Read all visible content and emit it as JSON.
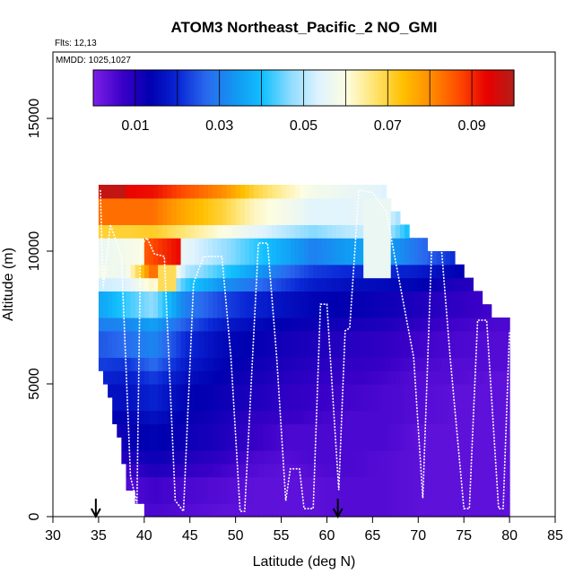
{
  "chart_data": {
    "type": "heatmap",
    "title": "ATOM3 Northeast_Pacific_2 NO_GMI",
    "flights_label": "Flts: 12,13",
    "mmdd_label": "MMDD: 1025,1027",
    "xlabel": "Latitude (deg N)",
    "ylabel": "Altitude (m)",
    "xlim": [
      30,
      85
    ],
    "ylim": [
      0,
      17500
    ],
    "x_ticks": [
      "30",
      "35",
      "40",
      "45",
      "50",
      "55",
      "60",
      "65",
      "70",
      "75",
      "80",
      "85"
    ],
    "y_ticks": [
      "0",
      "5000",
      "10000",
      "15000"
    ],
    "colorbar": {
      "ticks": [
        "0.01",
        "0.03",
        "0.05",
        "0.07",
        "0.09"
      ],
      "range": [
        0,
        0.1
      ],
      "colors": [
        "#7a1ee6",
        "#3a00c8",
        "#0000b0",
        "#0a28d6",
        "#2a6aee",
        "#1296f2",
        "#12c0ff",
        "#8fdcff",
        "#dff3ff",
        "#fdfde0",
        "#ffe36e",
        "#ffbf00",
        "#ff8c00",
        "#ff4a00",
        "#e80000",
        "#b0201a"
      ]
    },
    "markers": [
      34.7,
      61.2
    ],
    "flight_track": [
      [
        35.2,
        12300
      ],
      [
        35.5,
        8600
      ],
      [
        36.3,
        11000
      ],
      [
        37.5,
        9800
      ],
      [
        38.5,
        1500
      ],
      [
        39.2,
        500
      ],
      [
        39.6,
        10200
      ],
      [
        40.3,
        10500
      ],
      [
        41.1,
        9900
      ],
      [
        42.2,
        9800
      ],
      [
        43.4,
        600
      ],
      [
        44.3,
        200
      ],
      [
        45.4,
        8800
      ],
      [
        46.5,
        9800
      ],
      [
        48.5,
        9800
      ],
      [
        49.5,
        6000
      ],
      [
        50.5,
        200
      ],
      [
        51.0,
        200
      ],
      [
        52.5,
        10300
      ],
      [
        53.5,
        10300
      ],
      [
        54.5,
        6000
      ],
      [
        55.5,
        600
      ],
      [
        56.0,
        1800
      ],
      [
        57.0,
        1800
      ],
      [
        57.5,
        300
      ],
      [
        58.5,
        300
      ],
      [
        59.3,
        8000
      ],
      [
        60.0,
        8000
      ],
      [
        61.3,
        1000
      ],
      [
        62.0,
        7000
      ],
      [
        62.5,
        7100
      ],
      [
        63.5,
        12300
      ],
      [
        65.0,
        12200
      ],
      [
        66.5,
        11500
      ],
      [
        69.5,
        6000
      ],
      [
        70.5,
        700
      ],
      [
        71.5,
        10300
      ],
      [
        72.5,
        10300
      ],
      [
        73.5,
        6000
      ],
      [
        75.0,
        300
      ],
      [
        75.6,
        300
      ],
      [
        76.5,
        7400
      ],
      [
        77.5,
        7400
      ],
      [
        78.8,
        300
      ],
      [
        79.3,
        300
      ],
      [
        80.0,
        7000
      ]
    ],
    "profile_mids": [
      35.5,
      38.0,
      41.0,
      44.5,
      48.5,
      52.0,
      55.5,
      58.5,
      62.0,
      66.0,
      70.0,
      74.0,
      78.0
    ],
    "profile_values": [
      [
        0.004,
        0.004,
        0.005,
        0.007,
        0.01,
        0.013,
        0.016,
        0.019,
        0.022,
        0.025,
        0.03,
        0.036,
        0.052,
        0.058,
        0.056,
        0.07,
        0.083,
        0.095,
        0.098
      ],
      [
        0.004,
        0.004,
        0.006,
        0.01,
        0.012,
        0.014,
        0.016,
        0.018,
        0.021,
        0.027,
        0.031,
        0.042,
        0.053,
        0.056,
        0.058,
        0.07,
        0.083,
        0.093,
        0.096
      ],
      [
        0.005,
        0.006,
        0.01,
        0.012,
        0.014,
        0.016,
        0.019,
        0.022,
        0.027,
        0.031,
        0.035,
        0.047,
        0.062,
        0.085,
        0.06,
        0.071,
        0.083,
        0.092,
        0.096
      ],
      [
        0.004,
        0.005,
        0.008,
        0.01,
        0.012,
        0.013,
        0.014,
        0.016,
        0.018,
        0.02,
        0.025,
        0.03,
        0.042,
        0.05,
        0.055,
        0.066,
        0.076,
        0.086,
        0.09
      ],
      [
        0.003,
        0.004,
        0.006,
        0.008,
        0.01,
        0.011,
        0.012,
        0.013,
        0.014,
        0.015,
        0.018,
        0.023,
        0.033,
        0.042,
        0.048,
        0.06,
        0.07,
        0.08,
        0.084
      ],
      [
        0.003,
        0.003,
        0.004,
        0.005,
        0.007,
        0.008,
        0.01,
        0.011,
        0.012,
        0.013,
        0.015,
        0.019,
        0.028,
        0.035,
        0.042,
        0.055,
        0.062,
        0.07,
        0.074
      ],
      [
        0.003,
        0.003,
        0.003,
        0.004,
        0.005,
        0.007,
        0.008,
        0.009,
        0.01,
        0.011,
        0.013,
        0.016,
        0.022,
        0.027,
        0.036,
        0.05,
        0.058,
        0.063,
        0.065
      ],
      [
        0.003,
        0.003,
        0.004,
        0.005,
        0.005,
        0.006,
        0.007,
        0.008,
        0.009,
        0.01,
        0.012,
        0.014,
        0.018,
        0.022,
        0.03,
        0.046,
        0.054,
        0.058,
        0.06
      ],
      [
        0.004,
        0.004,
        0.005,
        0.005,
        0.005,
        0.005,
        0.006,
        0.007,
        0.008,
        0.009,
        0.011,
        0.013,
        0.016,
        0.02,
        0.034,
        0.05,
        0.054,
        0.056,
        0.056
      ],
      [
        0.004,
        0.004,
        0.004,
        0.004,
        0.005,
        0.005,
        0.005,
        0.006,
        0.007,
        0.008,
        0.01,
        0.012,
        0.015,
        0.02,
        0.036,
        0.052,
        0.056,
        0.054,
        0.052
      ],
      [
        0.003,
        0.003,
        0.003,
        0.003,
        0.003,
        0.004,
        0.004,
        0.004,
        0.005,
        0.006,
        0.008,
        0.01,
        0.014,
        0.018,
        0.028,
        0.035,
        0.04,
        0.042,
        0.042
      ],
      [
        0.003,
        0.003,
        0.003,
        0.003,
        0.003,
        0.003,
        0.003,
        0.004,
        0.004,
        0.005,
        0.006,
        0.008,
        0.01,
        0.014,
        0.02,
        0.025,
        0.028,
        0.03,
        0.03
      ],
      [
        0.003,
        0.003,
        0.003,
        0.003,
        0.003,
        0.003,
        0.003,
        0.003,
        0.004,
        0.004,
        0.005,
        0.006,
        0.008,
        0.01,
        0.014,
        0.018,
        0.02,
        0.022,
        0.022
      ]
    ],
    "level_step_m": 500,
    "lat_step_deg": 0.5,
    "top_altitude_m": [
      [
        35.0,
        12500
      ],
      [
        50.0,
        12500
      ],
      [
        66.0,
        12500
      ],
      [
        67.0,
        11500
      ],
      [
        68.0,
        11000
      ],
      [
        69.0,
        10500
      ],
      [
        70.0,
        10500
      ],
      [
        71.0,
        10000
      ],
      [
        73.0,
        10000
      ],
      [
        74.0,
        9500
      ],
      [
        75.0,
        9000
      ],
      [
        76.0,
        8500
      ],
      [
        77.0,
        8000
      ],
      [
        78.0,
        7500
      ],
      [
        80.0,
        7500
      ]
    ],
    "bottom_altitude_m": [
      [
        35.0,
        6000
      ],
      [
        36.0,
        5000
      ],
      [
        37.0,
        3500
      ],
      [
        38.0,
        1500
      ],
      [
        40.0,
        500
      ],
      [
        42.0,
        0
      ],
      [
        80.0,
        0
      ]
    ]
  }
}
